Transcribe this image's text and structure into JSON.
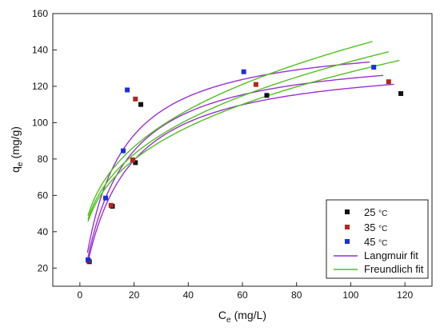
{
  "chart_data": {
    "type": "scatter",
    "xlabel_main": "C",
    "xlabel_sub": "e",
    "xlabel_unit": "(mg/L)",
    "ylabel_main": "q",
    "ylabel_sub": "e",
    "ylabel_unit": "(mg/g)",
    "xlim": [
      -10,
      130
    ],
    "ylim": [
      10,
      160
    ],
    "x_ticks": [
      0,
      20,
      40,
      60,
      80,
      100,
      120
    ],
    "y_ticks": [
      20,
      40,
      60,
      80,
      100,
      120,
      140,
      160
    ],
    "legend_position": "bottom-right",
    "series": [
      {
        "name": "25 °C",
        "color": "#111111",
        "marker": "square",
        "points": [
          [
            3.5,
            23.5
          ],
          [
            12,
            54
          ],
          [
            20.5,
            78
          ],
          [
            22.5,
            110
          ],
          [
            69,
            115
          ],
          [
            118.5,
            116
          ]
        ]
      },
      {
        "name": "35 °C",
        "color": "#b0281e",
        "marker": "square",
        "points": [
          [
            3.2,
            24
          ],
          [
            11.5,
            54.5
          ],
          [
            19.5,
            79.5
          ],
          [
            20.5,
            113
          ],
          [
            65,
            121
          ],
          [
            114,
            122.5
          ]
        ]
      },
      {
        "name": "45 °C",
        "color": "#1a2fe0",
        "marker": "square",
        "points": [
          [
            3.0,
            24.5
          ],
          [
            9.5,
            58.5
          ],
          [
            16,
            84.5
          ],
          [
            17.5,
            118
          ],
          [
            60.5,
            128
          ],
          [
            108.5,
            130.5
          ]
        ]
      }
    ],
    "fits": [
      {
        "name": "Langmuir fit",
        "color": "#9b2fd6",
        "model": "langmuir",
        "curves": [
          {
            "qm": 136,
            "kl": 0.07,
            "xmin": 3.0,
            "xmax": 116
          },
          {
            "qm": 141,
            "kl": 0.075,
            "xmin": 3.0,
            "xmax": 112
          },
          {
            "qm": 148,
            "kl": 0.085,
            "xmin": 2.8,
            "xmax": 107
          }
        ]
      },
      {
        "name": "Freundlich fit",
        "color": "#4ec21a",
        "model": "freundlich",
        "curves": [
          {
            "kf": 33.0,
            "n": 3.4,
            "xmin": 3.0,
            "xmax": 118
          },
          {
            "kf": 33.8,
            "n": 3.35,
            "xmin": 3.0,
            "xmax": 114
          },
          {
            "kf": 35.0,
            "n": 3.3,
            "xmin": 3.0,
            "xmax": 108
          }
        ]
      }
    ],
    "legend": [
      {
        "label_num": "25 ",
        "label_unit": "°C",
        "kind": "marker",
        "color": "#111111"
      },
      {
        "label_num": "35 ",
        "label_unit": "°C",
        "kind": "marker",
        "color": "#b0281e"
      },
      {
        "label_num": "45 ",
        "label_unit": "°C",
        "kind": "marker",
        "color": "#1a2fe0"
      },
      {
        "label_num": "Langmuir fit",
        "label_unit": "",
        "kind": "line",
        "color": "#9b2fd6"
      },
      {
        "label_num": "Freundlich fit",
        "label_unit": "",
        "kind": "line",
        "color": "#4ec21a"
      }
    ]
  }
}
